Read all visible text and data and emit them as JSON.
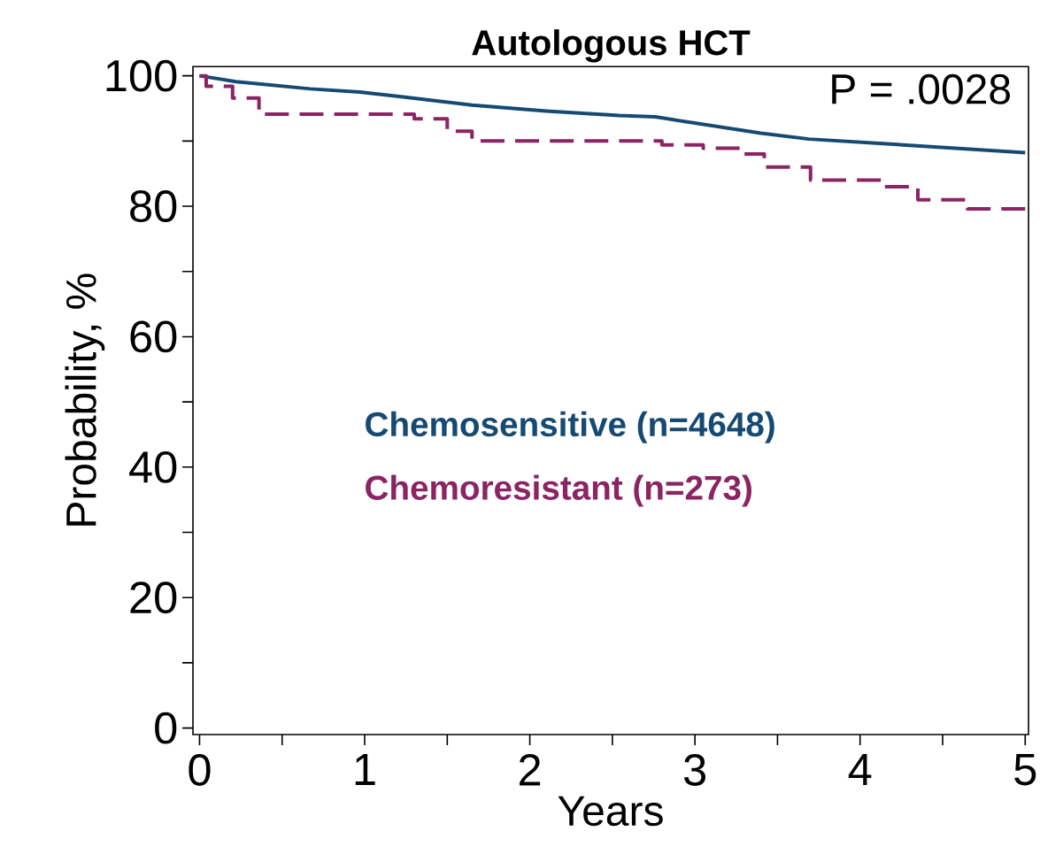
{
  "chart_data": {
    "type": "line",
    "title": "Autologous HCT",
    "xlabel": "Years",
    "ylabel": "Probability, %",
    "xlim": [
      -0.04,
      5.02
    ],
    "ylim": [
      -1,
      101.4
    ],
    "xticks": [
      0,
      {
        "value": 0.5,
        "label": null
      },
      1,
      {
        "value": 1.5,
        "label": null
      },
      2,
      {
        "value": 2.5,
        "label": null
      },
      3,
      {
        "value": 3.5,
        "label": null
      },
      4,
      {
        "value": 4.5,
        "label": null
      },
      5
    ],
    "yticks": [
      0,
      {
        "value": 10,
        "label": null
      },
      20,
      {
        "value": 30,
        "label": null
      },
      40,
      {
        "value": 50,
        "label": null
      },
      60,
      {
        "value": 70,
        "label": null
      },
      80,
      {
        "value": 90,
        "label": null
      },
      100
    ],
    "legend": "center",
    "grid": false,
    "annotations": [
      "P = .0028"
    ],
    "series": [
      {
        "name": "Chemosensitive (n=4648)",
        "color": "#164a72",
        "line_style": "solid",
        "x": [
          0,
          0.22,
          0.67,
          0.97,
          1.22,
          1.65,
          2.1,
          2.54,
          2.76,
          3.4,
          3.69,
          4.14,
          5.0
        ],
        "values": [
          100,
          99.1,
          98.0,
          97.5,
          96.8,
          95.5,
          94.6,
          93.9,
          93.7,
          91.2,
          90.3,
          89.6,
          88.2
        ]
      },
      {
        "name": "Chemoresistant (n=273)",
        "color": "#8b2463",
        "type": "step",
        "line_style": "dashed",
        "x": [
          0,
          0.04,
          0.2,
          0.36,
          1.3,
          1.5,
          1.65,
          2.8,
          3.05,
          3.3,
          3.42,
          3.7,
          4.15,
          4.35,
          4.65,
          5.0
        ],
        "values": [
          100,
          98.4,
          96.6,
          94.1,
          93.4,
          91.5,
          90.0,
          89.4,
          88.9,
          88.0,
          86.0,
          84.0,
          83.0,
          81.0,
          79.6,
          79.6
        ]
      }
    ]
  }
}
